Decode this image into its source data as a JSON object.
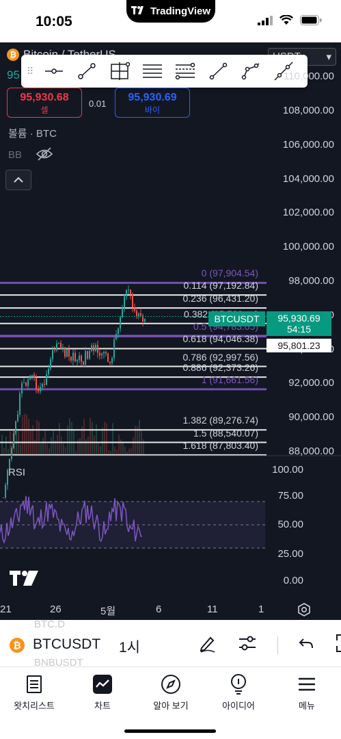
{
  "status_bar": {
    "time": "10:05",
    "app_name": "TradingView"
  },
  "header": {
    "symbol_partial": "Bitcoin / TetherUS",
    "price_partial": "95",
    "currency": "USDT"
  },
  "draw_toolbar": {
    "tools": [
      "horizontal-ray-tool",
      "trend-line-tool",
      "crosshair-tool",
      "parallel-lines-tool",
      "fib-retracement-tool",
      "ray-tool",
      "path-tool",
      "extended-line-tool"
    ]
  },
  "trade": {
    "sell_price": "95,930.68",
    "sell_label": "셀",
    "spread": "0.01",
    "buy_price": "95,930.69",
    "buy_label": "바이"
  },
  "indicators": {
    "volume": "볼륨 · BTC",
    "bb": "BB"
  },
  "price_axis": [
    "98,000.00",
    "96,000.00",
    "94,000.00",
    "92,000.00",
    "90,000.00",
    "88,000.00",
    "100,000.00",
    "102,000.00",
    "104,000.00",
    "106,000.00",
    "108,000.00",
    "110,000.00"
  ],
  "fib_levels": [
    {
      "label": "0 (97,904.54)",
      "price": 97904.54,
      "color": "#7e57c2"
    },
    {
      "label": "0.114 (97,192.84)",
      "price": 97192.84,
      "color": "#ffffff"
    },
    {
      "label": "0.236 (96,431.20)",
      "price": 96431.2,
      "color": "#ffffff"
    },
    {
      "label": "0.382 (95,520.xx)",
      "price": 95520,
      "color": "#ffffff"
    },
    {
      "label": "0.5 (94,783.05)",
      "price": 94783.05,
      "color": "#7e57c2"
    },
    {
      "label": "0.618 (94,046.38)",
      "price": 94046.38,
      "color": "#ffffff"
    },
    {
      "label": "0.786 (92,997.56)",
      "price": 92997.56,
      "color": "#ffffff"
    },
    {
      "label": "0.886 (92,373.26)",
      "price": 92373.26,
      "color": "#ffffff"
    },
    {
      "label": "1 (91,661.56)",
      "price": 91661.56,
      "color": "#7e57c2"
    },
    {
      "label": "1.382 (89,276.74)",
      "price": 89276.74,
      "color": "#ffffff"
    },
    {
      "label": "1.5 (88,540.07)",
      "price": 88540.07,
      "color": "#ffffff"
    },
    {
      "label": "1.618 (87,803.40)",
      "price": 87803.4,
      "color": "#ffffff"
    }
  ],
  "price_tags": {
    "symbol": "BTCUSDT",
    "last_price": "95,930.69",
    "countdown": "54:15",
    "fib_price": "95,801.23"
  },
  "rsi": {
    "label": "RSI",
    "axis": [
      "100.00",
      "75.00",
      "50.00",
      "25.00",
      "0.00"
    ]
  },
  "time_axis": [
    "21",
    "26",
    "5월",
    "6",
    "11",
    "1"
  ],
  "symbol_bar": {
    "ghost_top": "BTC.D",
    "ghost_bottom": "BNBUSDT",
    "symbol": "BTCUSDT",
    "interval": "1시"
  },
  "bottom_nav": [
    {
      "label": "왓치리스트",
      "icon": "watchlist-icon"
    },
    {
      "label": "차트",
      "icon": "chart-icon"
    },
    {
      "label": "알아 보기",
      "icon": "explore-icon"
    },
    {
      "label": "아이디어",
      "icon": "ideas-icon"
    },
    {
      "label": "메뉴",
      "icon": "menu-icon"
    }
  ],
  "colors": {
    "background": "#131722",
    "up": "#26a69a",
    "down": "#ef5350",
    "sell": "#f23645",
    "buy": "#2962ff",
    "fib_purple": "#7e57c2",
    "rsi_line": "#7e57c2",
    "price_tag": "#089981"
  }
}
